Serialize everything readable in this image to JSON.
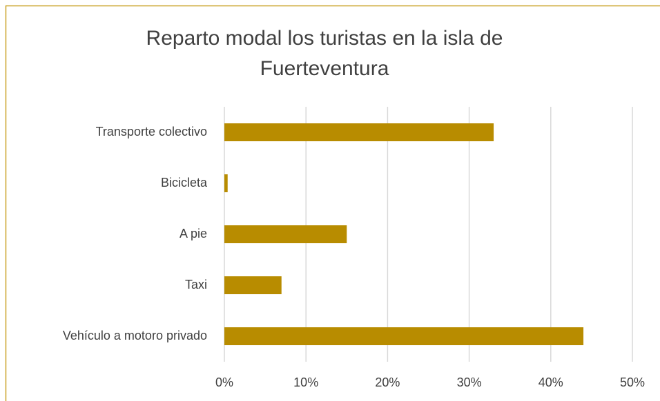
{
  "chart_data": {
    "type": "barh",
    "title": "Reparto modal los turistas en la isla de Fuerteventura",
    "categories": [
      "Transporte colectivo",
      "Bicicleta",
      "A pie",
      "Taxi",
      "Vehículo a motoro privado"
    ],
    "values": [
      33,
      0.4,
      15,
      7,
      44
    ],
    "color": "#b88c00",
    "xlim": [
      0,
      50
    ],
    "xticks": [
      {
        "value": 0,
        "label": "0%"
      },
      {
        "value": 10,
        "label": "10%"
      },
      {
        "value": 20,
        "label": "20%"
      },
      {
        "value": 30,
        "label": "30%"
      },
      {
        "value": 40,
        "label": "40%"
      },
      {
        "value": 50,
        "label": "50%"
      }
    ],
    "grid": true
  }
}
